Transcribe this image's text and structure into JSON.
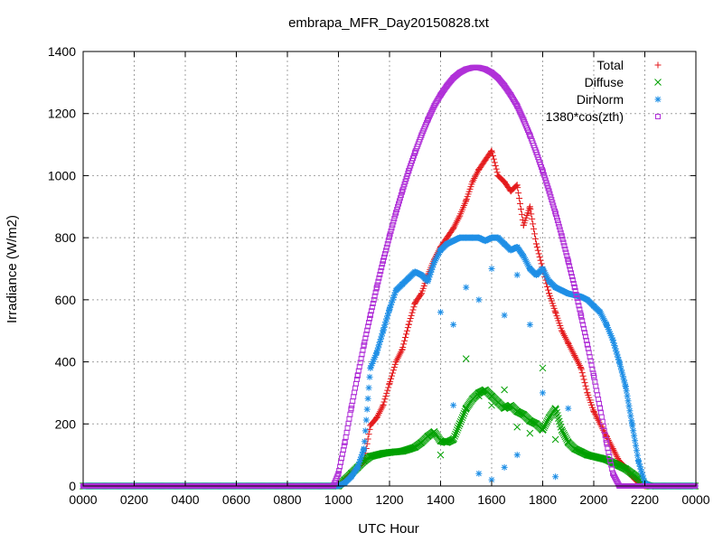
{
  "chart_data": {
    "type": "scatter",
    "title": "embrapa_MFR_Day20150828.txt",
    "xlabel": "UTC Hour",
    "ylabel": "Irradiance (W/m2)",
    "xlim": [
      0,
      24
    ],
    "ylim": [
      0,
      1400
    ],
    "grid": true,
    "legend_position": "top-right",
    "x_ticks": [
      {
        "value": 0,
        "label": "0000"
      },
      {
        "value": 2,
        "label": "0200"
      },
      {
        "value": 4,
        "label": "0400"
      },
      {
        "value": 6,
        "label": "0600"
      },
      {
        "value": 8,
        "label": "0800"
      },
      {
        "value": 10,
        "label": "1000"
      },
      {
        "value": 12,
        "label": "1200"
      },
      {
        "value": 14,
        "label": "1400"
      },
      {
        "value": 16,
        "label": "1600"
      },
      {
        "value": 18,
        "label": "1800"
      },
      {
        "value": 20,
        "label": "2000"
      },
      {
        "value": 22,
        "label": "2200"
      },
      {
        "value": 24,
        "label": "0000"
      }
    ],
    "y_ticks": [
      {
        "value": 0,
        "label": "0"
      },
      {
        "value": 200,
        "label": "200"
      },
      {
        "value": 400,
        "label": "400"
      },
      {
        "value": 600,
        "label": "600"
      },
      {
        "value": 800,
        "label": "800"
      },
      {
        "value": 1000,
        "label": "1000"
      },
      {
        "value": 1200,
        "label": "1200"
      },
      {
        "value": 1400,
        "label": "1400"
      }
    ],
    "series": [
      {
        "name": "Total",
        "marker": "plus",
        "color": "#e41a1c",
        "x": [
          10.0,
          10.25,
          10.5,
          10.75,
          11.0,
          11.25,
          11.5,
          11.75,
          12.0,
          12.25,
          12.5,
          12.75,
          13.0,
          13.25,
          13.5,
          13.75,
          14.0,
          14.25,
          14.5,
          14.75,
          15.0,
          15.25,
          15.5,
          15.75,
          16.0,
          16.25,
          16.5,
          16.75,
          17.0,
          17.25,
          17.5,
          17.75,
          18.0,
          18.25,
          18.5,
          18.75,
          19.0,
          19.25,
          19.5,
          19.75,
          20.0,
          20.25,
          20.5,
          20.75,
          21.0,
          21.25,
          21.5,
          21.75,
          22.0,
          22.2
        ],
        "y": [
          0,
          20,
          40,
          60,
          80,
          195,
          220,
          260,
          330,
          400,
          440,
          520,
          590,
          620,
          680,
          730,
          770,
          800,
          830,
          870,
          920,
          980,
          1020,
          1050,
          1080,
          1000,
          980,
          950,
          970,
          840,
          900,
          780,
          700,
          620,
          560,
          500,
          460,
          420,
          380,
          300,
          240,
          200,
          160,
          120,
          80,
          60,
          30,
          10,
          0,
          0
        ]
      },
      {
        "name": "Diffuse",
        "marker": "cross",
        "color": "#00a000",
        "x": [
          10.0,
          10.25,
          10.5,
          10.75,
          11.0,
          11.25,
          11.5,
          11.75,
          12.0,
          12.25,
          12.5,
          12.75,
          13.0,
          13.25,
          13.5,
          13.75,
          14.0,
          14.25,
          14.5,
          14.75,
          15.0,
          15.25,
          15.5,
          15.75,
          16.0,
          16.25,
          16.5,
          16.75,
          17.0,
          17.25,
          17.5,
          17.75,
          18.0,
          18.25,
          18.5,
          18.75,
          19.0,
          19.25,
          19.5,
          19.75,
          20.0,
          20.25,
          20.5,
          20.75,
          21.0,
          21.25,
          21.5,
          21.75,
          22.0,
          22.2
        ],
        "y": [
          0,
          20,
          40,
          60,
          80,
          95,
          100,
          105,
          108,
          110,
          112,
          118,
          125,
          140,
          160,
          175,
          145,
          140,
          150,
          200,
          250,
          280,
          300,
          310,
          290,
          270,
          250,
          260,
          240,
          230,
          210,
          200,
          180,
          220,
          250,
          180,
          140,
          120,
          110,
          100,
          95,
          90,
          85,
          75,
          65,
          55,
          40,
          25,
          5,
          0
        ],
        "extra_points": [
          [
            14.0,
            100
          ],
          [
            15.0,
            410
          ],
          [
            15.5,
            290
          ],
          [
            16.0,
            260
          ],
          [
            16.5,
            310
          ],
          [
            17.0,
            190
          ],
          [
            17.5,
            170
          ],
          [
            18.0,
            380
          ],
          [
            18.5,
            150
          ]
        ]
      },
      {
        "name": "DirNorm",
        "marker": "star",
        "color": "#1f8fe6",
        "x": [
          10.0,
          10.25,
          10.5,
          10.75,
          11.0,
          11.25,
          11.5,
          11.75,
          12.0,
          12.25,
          12.5,
          12.75,
          13.0,
          13.25,
          13.5,
          13.75,
          14.0,
          14.25,
          14.5,
          14.75,
          15.0,
          15.25,
          15.5,
          15.75,
          16.0,
          16.25,
          16.5,
          16.75,
          17.0,
          17.25,
          17.5,
          17.75,
          18.0,
          18.25,
          18.5,
          18.75,
          19.0,
          19.25,
          19.5,
          19.75,
          20.0,
          20.25,
          20.5,
          20.75,
          21.0,
          21.25,
          21.5,
          21.75,
          22.0,
          22.2
        ],
        "y": [
          0,
          10,
          30,
          60,
          120,
          380,
          430,
          500,
          570,
          630,
          650,
          670,
          690,
          680,
          660,
          720,
          760,
          780,
          790,
          800,
          800,
          800,
          800,
          790,
          800,
          800,
          780,
          760,
          770,
          740,
          700,
          680,
          700,
          660,
          640,
          630,
          620,
          615,
          610,
          600,
          580,
          560,
          520,
          470,
          400,
          320,
          200,
          80,
          10,
          0
        ],
        "extra_points": [
          [
            14.0,
            560
          ],
          [
            14.5,
            520
          ],
          [
            15.0,
            640
          ],
          [
            15.5,
            600
          ],
          [
            16.0,
            700
          ],
          [
            16.5,
            550
          ],
          [
            17.0,
            680
          ],
          [
            17.5,
            520
          ],
          [
            18.0,
            300
          ],
          [
            14.5,
            260
          ],
          [
            15.5,
            40
          ],
          [
            16.0,
            20
          ],
          [
            16.5,
            60
          ],
          [
            17.0,
            100
          ],
          [
            18.5,
            30
          ],
          [
            19.0,
            250
          ]
        ]
      },
      {
        "name": "1380*cos(zth)",
        "marker": "square",
        "color": "#b030d8",
        "x": [
          9.8,
          10.0,
          10.25,
          10.5,
          10.75,
          11.0,
          11.25,
          11.5,
          11.75,
          12.0,
          12.25,
          12.5,
          12.75,
          13.0,
          13.25,
          13.5,
          13.75,
          14.0,
          14.25,
          14.5,
          14.75,
          15.0,
          15.25,
          15.5,
          15.75,
          16.0,
          16.25,
          16.5,
          16.75,
          17.0,
          17.25,
          17.5,
          17.75,
          18.0,
          18.25,
          18.5,
          18.75,
          19.0,
          19.25,
          19.5,
          19.75,
          20.0,
          20.25,
          20.5,
          20.75,
          21.0,
          21.25,
          21.5,
          21.75,
          22.0,
          22.2
        ],
        "y": [
          0,
          40,
          140,
          250,
          355,
          455,
          550,
          640,
          725,
          805,
          880,
          950,
          1015,
          1075,
          1130,
          1180,
          1225,
          1260,
          1290,
          1315,
          1332,
          1343,
          1348,
          1348,
          1343,
          1332,
          1315,
          1290,
          1260,
          1225,
          1180,
          1130,
          1075,
          1015,
          950,
          880,
          805,
          725,
          640,
          550,
          455,
          355,
          250,
          140,
          40,
          0,
          0,
          0,
          0,
          0,
          0
        ]
      }
    ]
  }
}
